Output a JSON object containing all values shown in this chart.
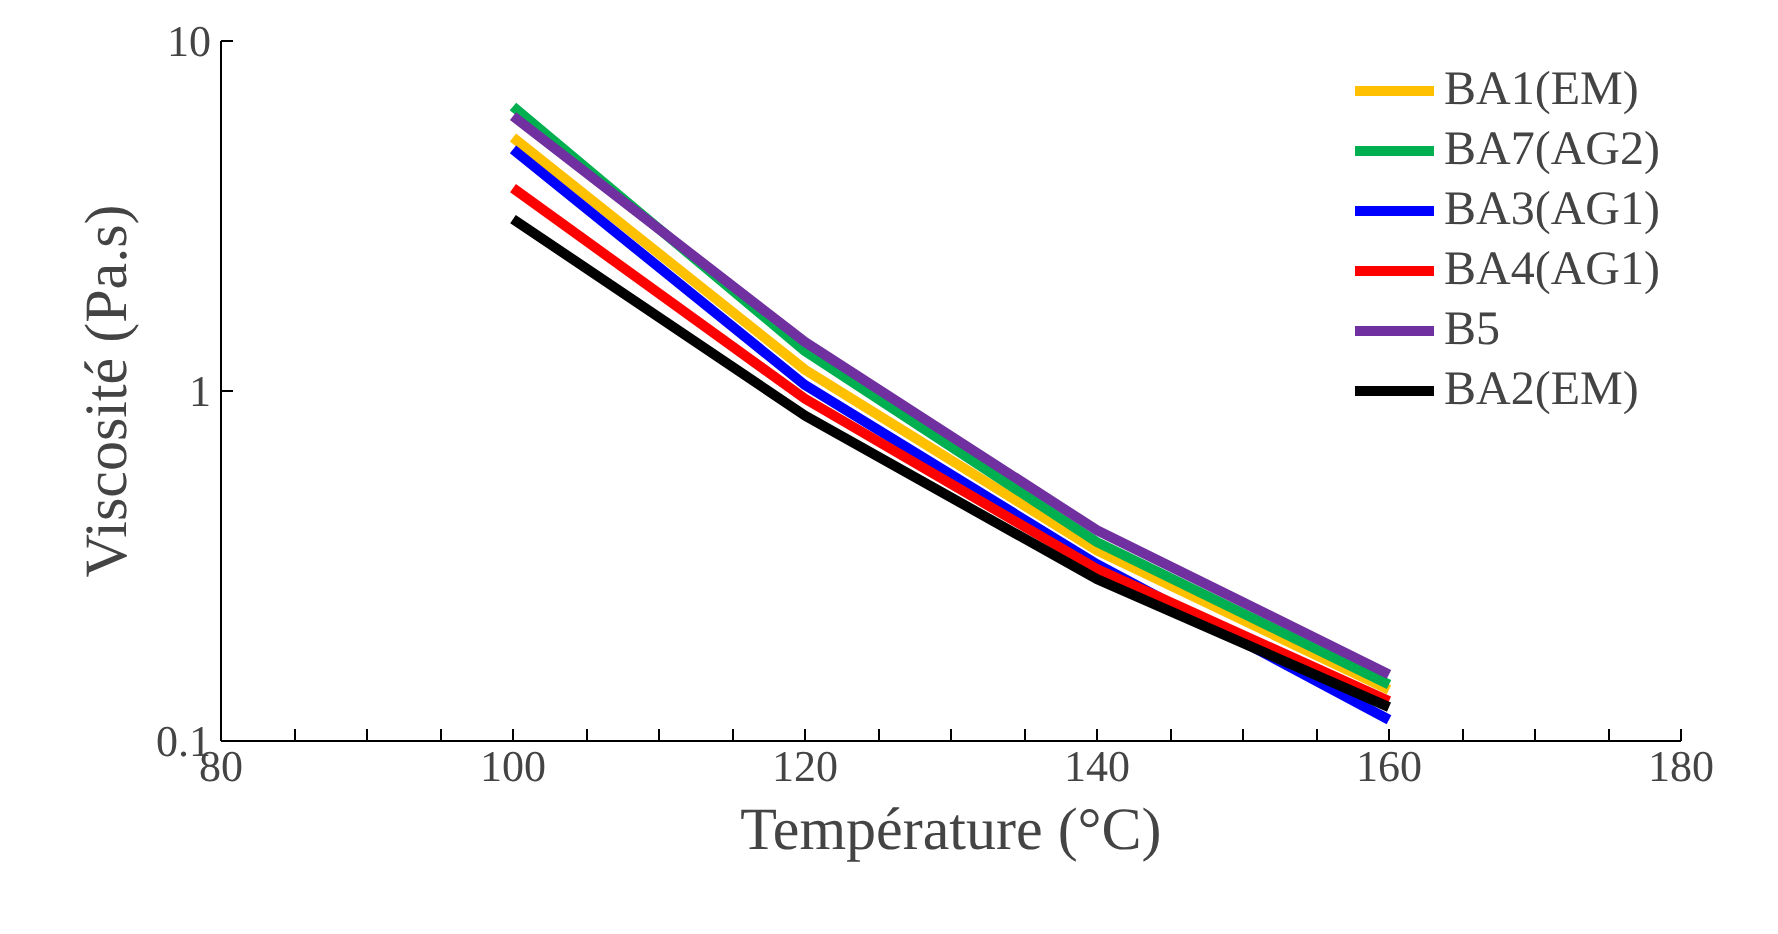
{
  "chart_data": {
    "type": "line",
    "xlabel": "Température (°C)",
    "ylabel": "Viscosité (Pa.s)",
    "x": [
      100,
      120,
      140,
      160
    ],
    "series": [
      {
        "name": "BA1(EM)",
        "color": "#ffc000",
        "values": [
          5.3,
          1.15,
          0.35,
          0.14
        ]
      },
      {
        "name": "BA7(AG2)",
        "color": "#00b050",
        "values": [
          6.5,
          1.3,
          0.37,
          0.145
        ]
      },
      {
        "name": "BA3(AG1)",
        "color": "#0000ff",
        "values": [
          4.9,
          1.04,
          0.32,
          0.115
        ]
      },
      {
        "name": "BA4(AG1)",
        "color": "#ff0000",
        "values": [
          3.8,
          0.95,
          0.31,
          0.13
        ]
      },
      {
        "name": "B5",
        "color": "#7030a0",
        "values": [
          6.1,
          1.38,
          0.4,
          0.155
        ]
      },
      {
        "name": "BA2(EM)",
        "color": "#000000",
        "values": [
          3.1,
          0.85,
          0.29,
          0.125
        ]
      }
    ],
    "log": "y",
    "xlim": [
      80,
      180
    ],
    "ylim": [
      0.1,
      10
    ],
    "xticks": [
      80,
      {
        "value": 85,
        "label": null
      },
      {
        "value": 90,
        "label": null
      },
      {
        "value": 95,
        "label": null
      },
      100,
      {
        "value": 105,
        "label": null
      },
      {
        "value": 110,
        "label": null
      },
      {
        "value": 115,
        "label": null
      },
      120,
      {
        "value": 125,
        "label": null
      },
      {
        "value": 130,
        "label": null
      },
      {
        "value": 135,
        "label": null
      },
      140,
      {
        "value": 145,
        "label": null
      },
      {
        "value": 150,
        "label": null
      },
      {
        "value": 155,
        "label": null
      },
      160,
      {
        "value": 165,
        "label": null
      },
      {
        "value": 170,
        "label": null
      },
      {
        "value": 175,
        "label": null
      },
      180
    ],
    "yticks": [
      0.1,
      1,
      10
    ],
    "grid": false,
    "legend": "top right",
    "marker": "none",
    "line_style": "solid"
  }
}
